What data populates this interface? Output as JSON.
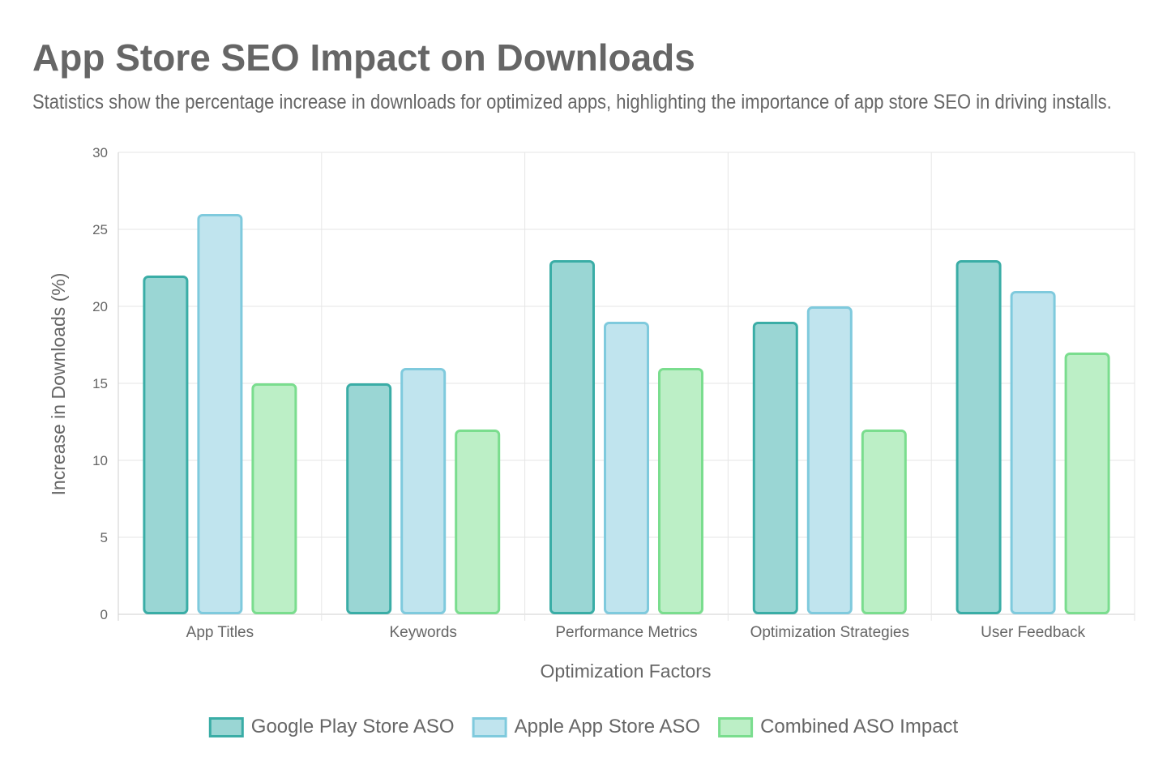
{
  "page": {
    "title": "App Store SEO Impact on Downloads",
    "subtitle": "Statistics show the percentage increase in downloads for optimized apps, highlighting the importance of app store SEO in driving installs."
  },
  "chart_data": {
    "type": "bar",
    "title": "App Store SEO Impact on Downloads",
    "subtitle": "Statistics show the percentage increase in downloads for optimized apps, highlighting the importance of app store SEO in driving installs.",
    "xlabel": "Optimization Factors",
    "ylabel": "Increase in Downloads (%)",
    "ylim": [
      0,
      30
    ],
    "yticks": [
      0,
      5,
      10,
      15,
      20,
      25,
      30
    ],
    "grid": true,
    "legend_position": "bottom",
    "categories": [
      "App Titles",
      "Keywords",
      "Performance Metrics",
      "Optimization Strategies",
      "User Feedback"
    ],
    "series": [
      {
        "name": "Google Play Store ASO",
        "values": [
          22,
          15,
          23,
          19,
          23
        ],
        "fill": "#9AD6D4",
        "stroke": "#3AADA6"
      },
      {
        "name": "Apple App Store ASO",
        "values": [
          26,
          16,
          19,
          20,
          21
        ],
        "fill": "#C0E4EE",
        "stroke": "#7FCADD"
      },
      {
        "name": "Combined ASO Impact",
        "values": [
          15,
          12,
          16,
          12,
          17
        ],
        "fill": "#BCEFC6",
        "stroke": "#7ADD8E"
      }
    ]
  }
}
